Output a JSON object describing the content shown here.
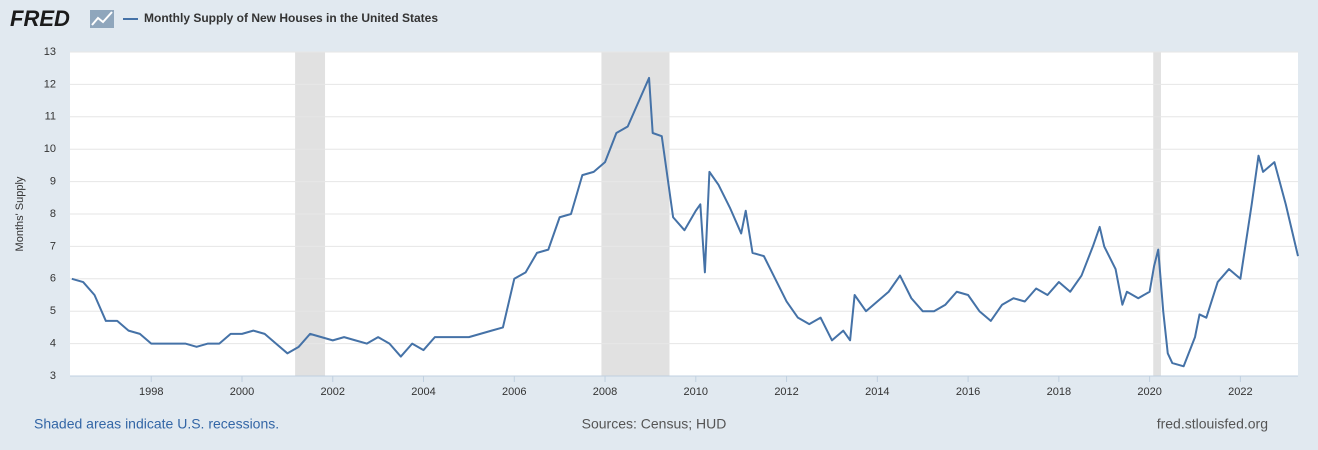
{
  "logo": "FRED",
  "chart_data": {
    "type": "line",
    "ylabel": "Months' Supply",
    "x": [
      1996.25,
      1996.5,
      1996.75,
      1997.0,
      1997.25,
      1997.5,
      1997.75,
      1998.0,
      1998.25,
      1998.5,
      1998.75,
      1999.0,
      1999.25,
      1999.5,
      1999.75,
      2000.0,
      2000.25,
      2000.5,
      2000.75,
      2001.0,
      2001.25,
      2001.5,
      2001.75,
      2002.0,
      2002.25,
      2002.5,
      2002.75,
      2003.0,
      2003.25,
      2003.5,
      2003.75,
      2004.0,
      2004.25,
      2004.5,
      2004.75,
      2005.0,
      2005.25,
      2005.5,
      2005.75,
      2006.0,
      2006.25,
      2006.5,
      2006.75,
      2007.0,
      2007.25,
      2007.5,
      2007.75,
      2008.0,
      2008.25,
      2008.5,
      2008.75,
      2008.97,
      2009.05,
      2009.25,
      2009.5,
      2009.75,
      2010.0,
      2010.1,
      2010.2,
      2010.3,
      2010.5,
      2010.75,
      2011.0,
      2011.1,
      2011.25,
      2011.5,
      2011.75,
      2012.0,
      2012.25,
      2012.5,
      2012.75,
      2013.0,
      2013.25,
      2013.4,
      2013.5,
      2013.75,
      2014.0,
      2014.25,
      2014.5,
      2014.75,
      2015.0,
      2015.25,
      2015.5,
      2015.75,
      2016.0,
      2016.25,
      2016.5,
      2016.75,
      2017.0,
      2017.25,
      2017.5,
      2017.75,
      2018.0,
      2018.25,
      2018.5,
      2018.75,
      2018.9,
      2019.0,
      2019.25,
      2019.4,
      2019.5,
      2019.75,
      2020.0,
      2020.1,
      2020.19,
      2020.3,
      2020.4,
      2020.5,
      2020.75,
      2021.0,
      2021.1,
      2021.25,
      2021.5,
      2021.75,
      2022.0,
      2022.25,
      2022.4,
      2022.5,
      2022.75,
      2023.0,
      2023.27
    ],
    "series": [
      {
        "name": "Monthly Supply of New Houses in the United States",
        "color": "#4572a7",
        "values": [
          6.0,
          5.9,
          5.5,
          4.7,
          4.7,
          4.4,
          4.3,
          4.0,
          4.0,
          4.0,
          4.0,
          3.9,
          4.0,
          4.0,
          4.3,
          4.3,
          4.4,
          4.3,
          4.0,
          3.7,
          3.9,
          4.3,
          4.2,
          4.1,
          4.2,
          4.1,
          4.0,
          4.2,
          4.0,
          3.6,
          4.0,
          3.8,
          4.2,
          4.2,
          4.2,
          4.2,
          4.3,
          4.4,
          4.5,
          6.0,
          6.2,
          6.8,
          6.9,
          7.9,
          8.0,
          9.2,
          9.3,
          9.6,
          10.5,
          10.7,
          11.5,
          12.2,
          10.5,
          10.4,
          7.9,
          7.5,
          8.1,
          8.3,
          6.2,
          9.3,
          8.9,
          8.2,
          7.4,
          8.1,
          6.8,
          6.7,
          6.0,
          5.3,
          4.8,
          4.6,
          4.8,
          4.1,
          4.4,
          4.1,
          5.5,
          5.0,
          5.3,
          5.6,
          6.1,
          5.4,
          5.0,
          5.0,
          5.2,
          5.6,
          5.5,
          5.0,
          4.7,
          5.2,
          5.4,
          5.3,
          5.7,
          5.5,
          5.9,
          5.6,
          6.1,
          7.0,
          7.6,
          7.0,
          6.3,
          5.2,
          5.6,
          5.4,
          5.6,
          6.4,
          6.9,
          5.0,
          3.7,
          3.4,
          3.3,
          4.2,
          4.9,
          4.8,
          5.9,
          6.3,
          6.0,
          8.3,
          9.8,
          9.3,
          9.6,
          8.3,
          6.7
        ]
      }
    ],
    "recessions": [
      [
        2001.17,
        2001.83
      ],
      [
        2007.92,
        2009.42
      ],
      [
        2020.08,
        2020.25
      ]
    ],
    "recession_color": "#e1e1e1",
    "xlim": [
      1996.21,
      2023.27
    ],
    "xticks": [
      1998,
      2000,
      2002,
      2004,
      2006,
      2008,
      2010,
      2012,
      2014,
      2016,
      2018,
      2020,
      2022
    ],
    "ylim": [
      3,
      13
    ],
    "yticks": [
      3,
      4,
      5,
      6,
      7,
      8,
      9,
      10,
      11,
      12,
      13
    ],
    "grid": true,
    "notes": {
      "left": "Shaded areas indicate U.S. recessions.",
      "center": "Sources: Census; HUD",
      "right": "fred.stlouisfed.org"
    }
  }
}
